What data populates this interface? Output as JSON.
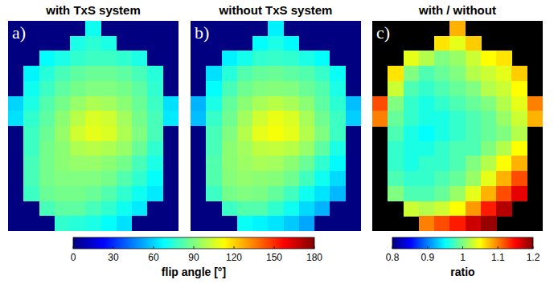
{
  "chart_data": [
    {
      "type": "heatmap",
      "title": "with TxS system",
      "panel_label": "a)",
      "cells": [
        [
          0,
          0,
          0,
          0,
          0,
          70,
          0,
          0,
          0,
          0,
          0
        ],
        [
          0,
          0,
          0,
          0,
          72,
          75,
          72,
          0,
          0,
          0,
          0
        ],
        [
          0,
          0,
          68,
          72,
          76,
          78,
          78,
          76,
          72,
          0,
          0
        ],
        [
          0,
          66,
          74,
          80,
          84,
          86,
          86,
          84,
          80,
          74,
          0
        ],
        [
          0,
          70,
          78,
          84,
          88,
          90,
          90,
          88,
          84,
          76,
          0
        ],
        [
          60,
          72,
          82,
          88,
          94,
          98,
          96,
          92,
          86,
          78,
          62
        ],
        [
          62,
          76,
          84,
          92,
          100,
          106,
          104,
          96,
          88,
          80,
          64
        ],
        [
          0,
          78,
          86,
          94,
          104,
          108,
          106,
          98,
          90,
          80,
          0
        ],
        [
          0,
          78,
          88,
          92,
          98,
          100,
          98,
          94,
          86,
          76,
          0
        ],
        [
          0,
          80,
          88,
          92,
          94,
          94,
          92,
          88,
          80,
          72,
          0
        ],
        [
          0,
          80,
          88,
          90,
          90,
          90,
          88,
          82,
          76,
          68,
          0
        ],
        [
          0,
          78,
          86,
          88,
          88,
          86,
          82,
          76,
          70,
          64,
          0
        ],
        [
          0,
          0,
          80,
          84,
          84,
          80,
          76,
          70,
          64,
          0,
          0
        ],
        [
          0,
          0,
          0,
          76,
          74,
          72,
          68,
          62,
          0,
          0,
          0
        ]
      ]
    },
    {
      "type": "heatmap",
      "title": "without TxS system",
      "panel_label": "b)",
      "cells": [
        [
          0,
          0,
          0,
          0,
          0,
          65,
          0,
          0,
          0,
          0,
          0
        ],
        [
          0,
          0,
          0,
          0,
          68,
          72,
          67,
          0,
          0,
          0,
          0
        ],
        [
          0,
          0,
          65,
          71,
          76,
          77,
          76,
          72,
          68,
          0,
          0
        ],
        [
          0,
          62,
          74,
          82,
          85,
          86,
          84,
          82,
          77,
          69,
          0
        ],
        [
          0,
          68,
          80,
          87,
          90,
          91,
          90,
          86,
          82,
          72,
          0
        ],
        [
          54,
          72,
          85,
          92,
          97,
          100,
          97,
          92,
          84,
          75,
          56
        ],
        [
          56,
          77,
          87,
          96,
          104,
          109,
          106,
          97,
          87,
          78,
          59
        ],
        [
          0,
          80,
          90,
          99,
          108,
          111,
          108,
          99,
          90,
          78,
          0
        ],
        [
          0,
          80,
          92,
          96,
          101,
          102,
          100,
          94,
          84,
          72,
          0
        ],
        [
          0,
          82,
          92,
          95,
          97,
          96,
          92,
          86,
          76,
          67,
          0
        ],
        [
          0,
          82,
          91,
          93,
          92,
          91,
          87,
          79,
          70,
          61,
          0
        ],
        [
          0,
          78,
          88,
          90,
          89,
          85,
          79,
          70,
          63,
          55,
          0
        ],
        [
          0,
          0,
          78,
          82,
          82,
          76,
          70,
          61,
          54,
          0,
          0
        ],
        [
          0,
          0,
          0,
          69,
          66,
          63,
          58,
          52,
          0,
          0,
          0
        ]
      ]
    },
    {
      "type": "heatmap",
      "title": "with / without",
      "panel_label": "c)",
      "cells": [
        [
          null,
          null,
          null,
          null,
          null,
          1.08,
          null,
          null,
          null,
          null,
          null
        ],
        [
          null,
          null,
          null,
          null,
          1.06,
          1.04,
          1.07,
          null,
          null,
          null,
          null
        ],
        [
          null,
          null,
          1.04,
          1.02,
          1.0,
          1.01,
          1.03,
          1.05,
          1.06,
          null,
          null
        ],
        [
          null,
          1.06,
          1.0,
          0.98,
          0.99,
          1.0,
          1.02,
          1.03,
          1.04,
          1.07,
          null
        ],
        [
          null,
          1.03,
          0.98,
          0.97,
          0.98,
          0.99,
          1.0,
          1.02,
          1.03,
          1.05,
          null
        ],
        [
          1.12,
          1.0,
          0.97,
          0.96,
          0.97,
          0.98,
          0.99,
          1.0,
          1.02,
          1.04,
          1.1
        ],
        [
          1.1,
          0.99,
          0.97,
          0.96,
          0.96,
          0.97,
          0.98,
          0.99,
          1.01,
          1.03,
          1.08
        ],
        [
          null,
          0.98,
          0.96,
          0.95,
          0.96,
          0.97,
          0.98,
          0.99,
          1.0,
          1.02,
          null
        ],
        [
          null,
          0.97,
          0.96,
          0.96,
          0.97,
          0.98,
          0.98,
          1.0,
          1.02,
          1.05,
          null
        ],
        [
          null,
          0.97,
          0.96,
          0.97,
          0.97,
          0.98,
          1.0,
          1.02,
          1.05,
          1.08,
          null
        ],
        [
          null,
          0.98,
          0.97,
          0.97,
          0.98,
          0.99,
          1.01,
          1.04,
          1.08,
          1.12,
          null
        ],
        [
          null,
          1.0,
          0.98,
          0.98,
          0.99,
          1.01,
          1.04,
          1.08,
          1.12,
          1.16,
          null
        ],
        [
          null,
          null,
          1.03,
          1.02,
          1.03,
          1.05,
          1.09,
          1.14,
          1.18,
          null,
          null
        ],
        [
          null,
          null,
          null,
          1.1,
          1.12,
          1.14,
          1.17,
          1.19,
          null,
          null,
          null
        ]
      ]
    },
    {
      "type": "colorbar",
      "label": "flip angle [°]",
      "clim": [
        0,
        180
      ],
      "ticks": [
        0,
        30,
        60,
        90,
        120,
        150,
        180
      ]
    },
    {
      "type": "colorbar",
      "label": "ratio",
      "clim": [
        0.8,
        1.2
      ],
      "ticks": [
        0.8,
        0.9,
        1,
        1.1,
        1.2
      ]
    }
  ]
}
